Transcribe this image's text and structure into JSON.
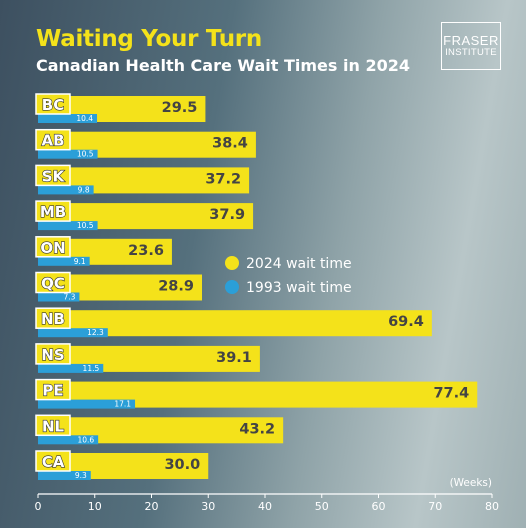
{
  "header": {
    "title": "Waiting Your Turn",
    "subtitle": "Canadian Health Care Wait Times in 2024"
  },
  "logo": {
    "line1": "FRASER",
    "line2": "INSTITUTE"
  },
  "colors": {
    "current": "#f4e21a",
    "previous": "#2b9fd8",
    "category_box": "#f4e21a"
  },
  "chart_data": {
    "type": "bar",
    "orientation": "horizontal",
    "title": "Waiting Your Turn",
    "subtitle": "Canadian Health Care Wait Times in 2024",
    "categories": [
      "BC",
      "AB",
      "SK",
      "MB",
      "ON",
      "QC",
      "NB",
      "NS",
      "PE",
      "NL",
      "CA"
    ],
    "series": [
      {
        "name": "2024 wait time",
        "values": [
          29.5,
          38.4,
          37.2,
          37.9,
          23.6,
          28.9,
          69.4,
          39.1,
          77.4,
          43.2,
          30.0
        ]
      },
      {
        "name": "1993 wait time",
        "values": [
          10.4,
          10.5,
          9.8,
          10.5,
          9.1,
          7.3,
          12.3,
          11.5,
          17.1,
          10.6,
          9.3
        ]
      }
    ],
    "xlim": [
      0,
      80
    ],
    "xticks": [
      0,
      10,
      20,
      30,
      40,
      50,
      60,
      70,
      80
    ],
    "xlabel": "(Weeks)",
    "legend": "center-right",
    "grid": false
  }
}
